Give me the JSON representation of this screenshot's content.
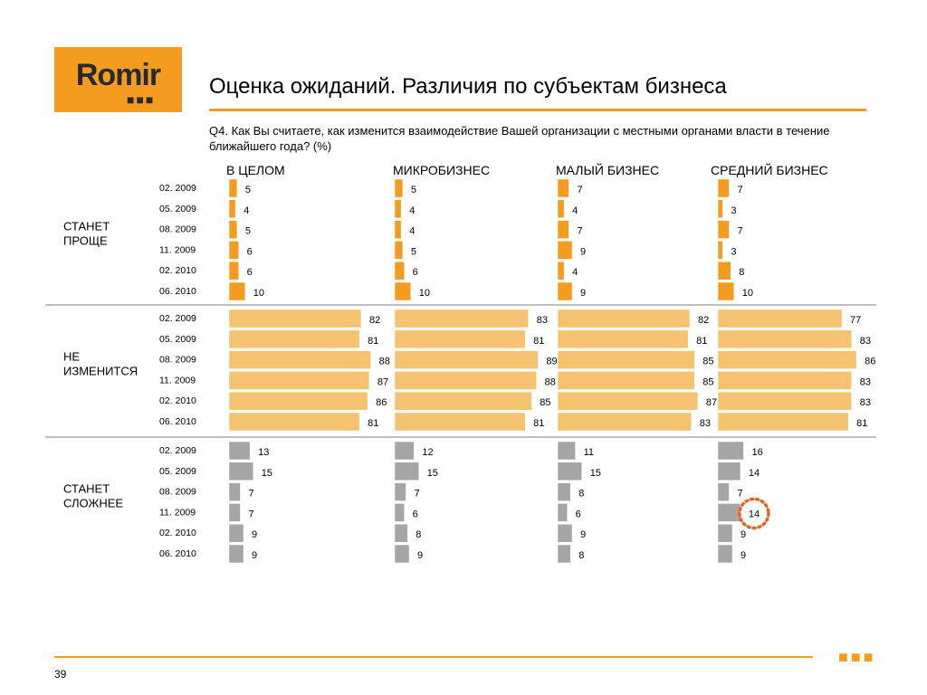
{
  "logo": {
    "text": "Romir",
    "dots": "■■■"
  },
  "header": {
    "title": "Оценка ожиданий. Различия по субъектам бизнеса",
    "question": "Q4. Как Вы считаете, как изменится взаимодействие Вашей организации с местными органами власти в течение ближайшего года? (%)"
  },
  "footer": {
    "page": "39",
    "dots": "■■■"
  },
  "colors": {
    "accent": "#f39c1f",
    "easier": "#f39c1f",
    "unchanged": "#f5c36f",
    "harder": "#a5a5a5",
    "highlight": "#e8641e"
  },
  "chart_data": {
    "type": "bar",
    "orientation": "horizontal",
    "columns": [
      "В ЦЕЛОМ",
      "МИКРОБИЗНЕС",
      "МАЛЫЙ БИЗНЕС",
      "СРЕДНИЙ БИЗНЕС"
    ],
    "periods": [
      "02. 2009",
      "05. 2009",
      "08. 2009",
      "11. 2009",
      "02. 2010",
      "06. 2010"
    ],
    "groups": [
      {
        "label": "СТАНЕТ ПРОЩЕ",
        "values": [
          [
            5,
            4,
            5,
            6,
            6,
            10
          ],
          [
            5,
            4,
            4,
            5,
            6,
            10
          ],
          [
            7,
            4,
            7,
            9,
            4,
            9
          ],
          [
            7,
            3,
            7,
            3,
            8,
            10
          ]
        ]
      },
      {
        "label": "НЕ ИЗМЕНИТСЯ",
        "values": [
          [
            82,
            81,
            88,
            87,
            86,
            81
          ],
          [
            83,
            81,
            89,
            88,
            85,
            81
          ],
          [
            82,
            81,
            85,
            85,
            87,
            83
          ],
          [
            77,
            83,
            86,
            83,
            83,
            81
          ]
        ]
      },
      {
        "label": "СТАНЕТ СЛОЖНЕЕ",
        "values": [
          [
            13,
            15,
            7,
            7,
            9,
            9
          ],
          [
            12,
            15,
            7,
            6,
            8,
            9
          ],
          [
            11,
            15,
            8,
            6,
            9,
            8
          ],
          [
            16,
            14,
            7,
            14,
            9,
            9
          ]
        ]
      }
    ],
    "highlight": {
      "group": 2,
      "column": 3,
      "period": 3
    }
  }
}
